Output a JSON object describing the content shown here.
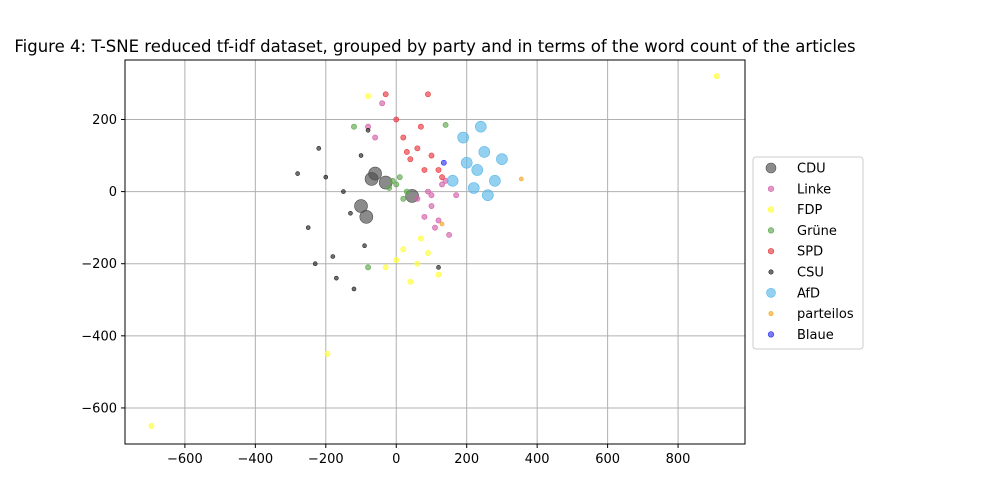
{
  "chart_data": {
    "type": "scatter",
    "title": "Figure 4: T-SNE reduced tf-idf dataset, grouped by party and in terms of the word count of the articles",
    "xlabel": "",
    "ylabel": "",
    "xlim": [
      -770,
      990
    ],
    "ylim": [
      -700,
      365
    ],
    "xticks": [
      -600,
      -400,
      -200,
      0,
      200,
      400,
      600,
      800
    ],
    "yticks": [
      -600,
      -400,
      -200,
      0,
      200
    ],
    "xtick_labels": [
      "−600",
      "−400",
      "−200",
      "0",
      "200",
      "400",
      "600",
      "800"
    ],
    "ytick_labels": [
      "−600",
      "−400",
      "−200",
      "0",
      "200"
    ],
    "grid": true,
    "legend_placement": "center-right, outside plot",
    "series": [
      {
        "name": "CDU",
        "color": "#4d4d4d",
        "size_level": "large",
        "points": [
          [
            45,
            -12
          ],
          [
            -60,
            50
          ],
          [
            -70,
            35
          ],
          [
            -85,
            -70
          ],
          [
            -30,
            25
          ],
          [
            -100,
            -40
          ]
        ]
      },
      {
        "name": "Linke",
        "color": "#d45fa8",
        "size_level": "small",
        "points": [
          [
            -40,
            245
          ],
          [
            130,
            20
          ],
          [
            100,
            -40
          ],
          [
            80,
            -70
          ],
          [
            60,
            -20
          ],
          [
            120,
            -80
          ],
          [
            150,
            -120
          ],
          [
            100,
            -10
          ],
          [
            140,
            30
          ],
          [
            -80,
            180
          ],
          [
            -60,
            150
          ],
          [
            170,
            -10
          ],
          [
            90,
            0
          ],
          [
            110,
            -100
          ]
        ]
      },
      {
        "name": "FDP",
        "color": "#ffff33",
        "size_level": "small",
        "points": [
          [
            20,
            -160
          ],
          [
            60,
            -200
          ],
          [
            90,
            -170
          ],
          [
            40,
            -250
          ],
          [
            0,
            -190
          ],
          [
            120,
            -230
          ],
          [
            -80,
            265
          ],
          [
            -195,
            -450
          ],
          [
            -695,
            -650
          ],
          [
            910,
            320
          ],
          [
            -30,
            -210
          ],
          [
            70,
            -130
          ]
        ]
      },
      {
        "name": "Grüne",
        "color": "#5fa84d",
        "size_level": "small",
        "points": [
          [
            0,
            20
          ],
          [
            10,
            40
          ],
          [
            -20,
            10
          ],
          [
            30,
            0
          ],
          [
            20,
            -20
          ],
          [
            -120,
            180
          ],
          [
            140,
            185
          ],
          [
            -80,
            -210
          ],
          [
            -10,
            30
          ]
        ]
      },
      {
        "name": "SPD",
        "color": "#e8393f",
        "size_level": "small",
        "points": [
          [
            0,
            200
          ],
          [
            20,
            150
          ],
          [
            60,
            120
          ],
          [
            90,
            270
          ],
          [
            40,
            90
          ],
          [
            120,
            60
          ],
          [
            130,
            40
          ],
          [
            -30,
            270
          ],
          [
            100,
            100
          ],
          [
            70,
            180
          ],
          [
            30,
            110
          ],
          [
            80,
            60
          ]
        ]
      },
      {
        "name": "CSU",
        "color": "#222222",
        "size_level": "tiny",
        "points": [
          [
            -230,
            -200
          ],
          [
            -120,
            -270
          ],
          [
            -150,
            0
          ],
          [
            -200,
            40
          ],
          [
            -100,
            100
          ],
          [
            -250,
            -100
          ],
          [
            -180,
            -180
          ],
          [
            -130,
            -60
          ],
          [
            -220,
            120
          ],
          [
            -80,
            170
          ],
          [
            -170,
            -240
          ],
          [
            -280,
            50
          ],
          [
            -90,
            -150
          ],
          [
            120,
            -210
          ]
        ]
      },
      {
        "name": "AfD",
        "color": "#5bb8e8",
        "size_level": "medium",
        "points": [
          [
            160,
            30
          ],
          [
            230,
            60
          ],
          [
            250,
            110
          ],
          [
            200,
            80
          ],
          [
            280,
            30
          ],
          [
            190,
            150
          ],
          [
            260,
            -10
          ],
          [
            220,
            10
          ],
          [
            300,
            90
          ],
          [
            240,
            180
          ]
        ]
      },
      {
        "name": "parteilos",
        "color": "#f5a623",
        "size_level": "tiny",
        "points": [
          [
            355,
            35
          ],
          [
            130,
            -90
          ]
        ]
      },
      {
        "name": "Blaue",
        "color": "#3333ee",
        "size_level": "small",
        "points": [
          [
            135,
            80
          ]
        ]
      }
    ]
  }
}
